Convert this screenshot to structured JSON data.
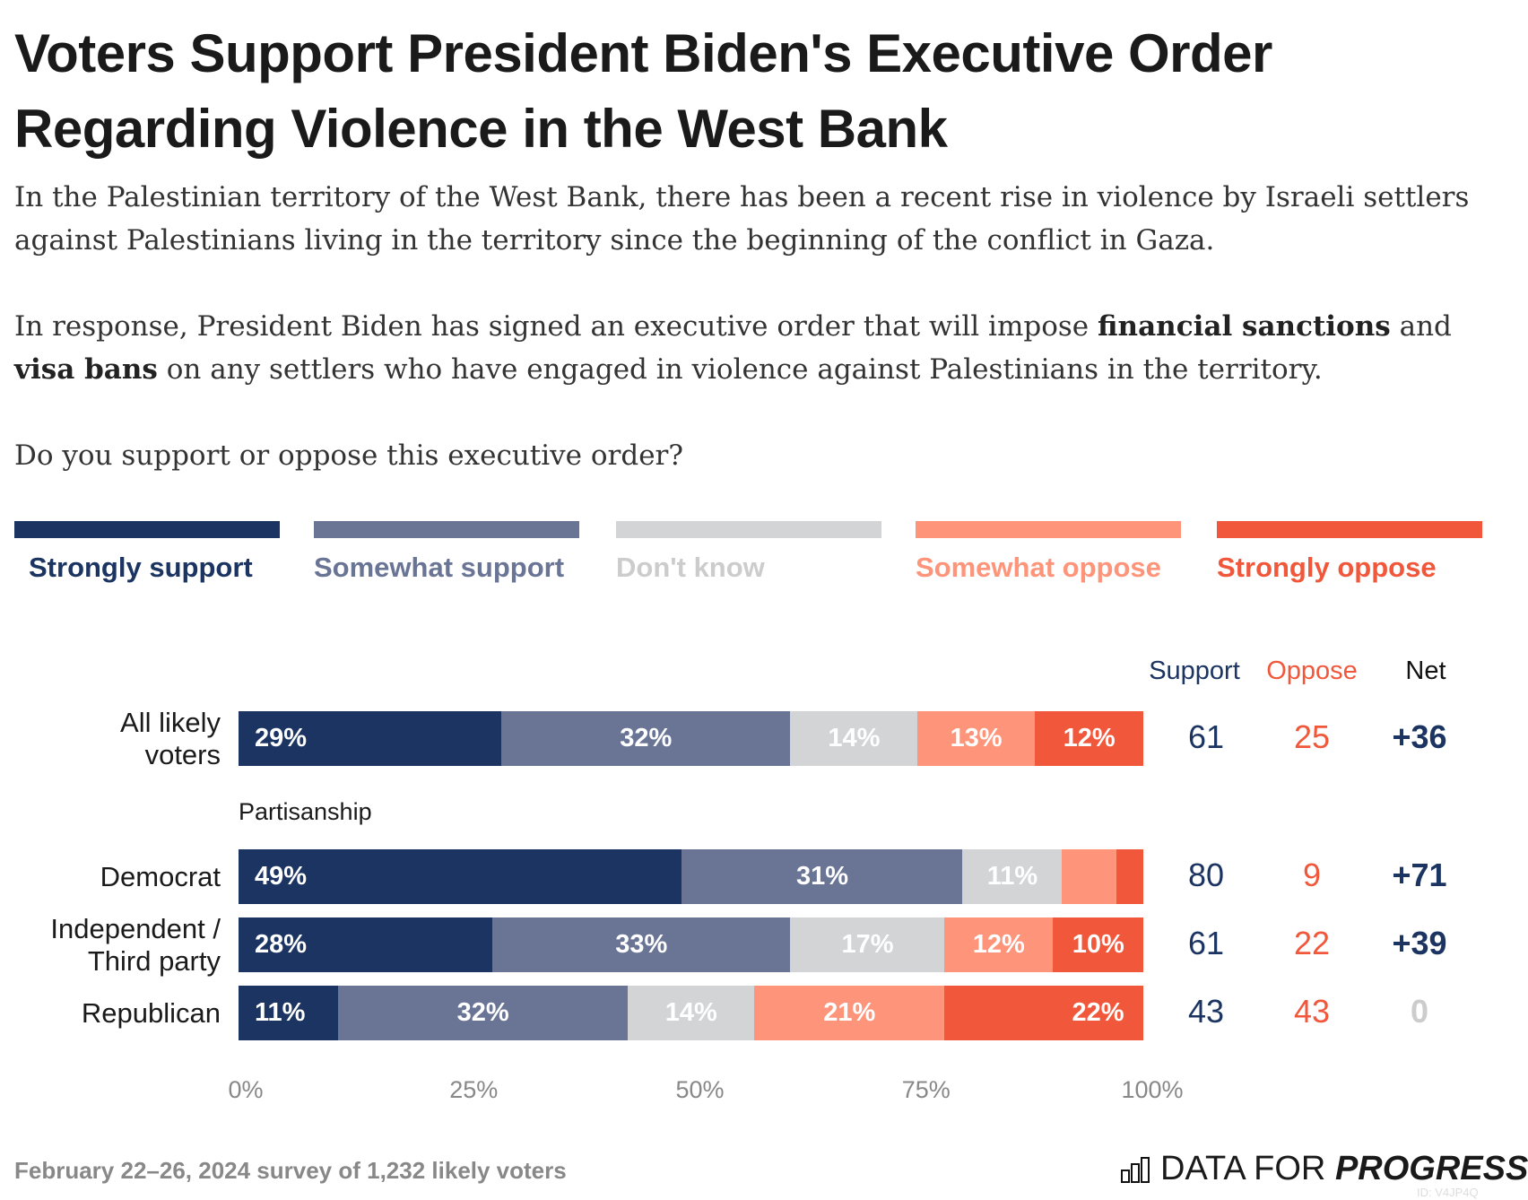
{
  "title": "Voters Support President Biden's Executive Order Regarding Violence in the West Bank",
  "intro": {
    "p1": "In the Palestinian territory of the West Bank, there has been a recent rise in violence by Israeli settlers against Palestinians living in the territory since the beginning of the conflict in Gaza.",
    "p2a": "In response, President Biden has signed an executive order that will impose ",
    "p2b": "financial sanctions",
    "p2c": " and ",
    "p2d": "visa bans",
    "p2e": " on any settlers who have engaged in violence against Palestinians in the territory.",
    "question": "Do you support or oppose this executive order?"
  },
  "colors": {
    "strongly_support": "#1b3461",
    "somewhat_support": "#6a7596",
    "dont_know": "#d3d4d6",
    "somewhat_oppose": "#fe9479",
    "strongly_oppose": "#f1573b"
  },
  "chart_data": {
    "type": "bar",
    "orientation": "horizontal-stacked",
    "legend": [
      "Strongly support",
      "Somewhat support",
      "Don't know",
      "Somewhat oppose",
      "Strongly oppose"
    ],
    "legend_placement": "top",
    "group_label": "Partisanship",
    "categories": [
      "All likely voters",
      "Democrat",
      "Independent / Third party",
      "Republican"
    ],
    "series": [
      {
        "name": "Strongly support",
        "values": [
          29,
          49,
          28,
          11
        ]
      },
      {
        "name": "Somewhat support",
        "values": [
          32,
          31,
          33,
          32
        ]
      },
      {
        "name": "Don't know",
        "values": [
          14,
          11,
          17,
          14
        ]
      },
      {
        "name": "Somewhat oppose",
        "values": [
          13,
          6,
          12,
          21
        ]
      },
      {
        "name": "Strongly oppose",
        "values": [
          12,
          3,
          10,
          22
        ]
      }
    ],
    "shown_labels": [
      [
        "29%",
        "32%",
        "14%",
        "13%",
        "12%"
      ],
      [
        "49%",
        "31%",
        "11%",
        "",
        ""
      ],
      [
        "28%",
        "33%",
        "17%",
        "12%",
        "10%"
      ],
      [
        "11%",
        "32%",
        "14%",
        "21%",
        "22%"
      ]
    ],
    "xlim": [
      0,
      100
    ],
    "xticks": [
      "0%",
      "25%",
      "50%",
      "75%",
      "100%"
    ],
    "summary_headers": [
      "Support",
      "Oppose",
      "Net"
    ],
    "summary": [
      [
        "61",
        "25",
        "+36"
      ],
      [
        "80",
        "9",
        "+71"
      ],
      [
        "61",
        "22",
        "+39"
      ],
      [
        "43",
        "43",
        "0"
      ]
    ]
  },
  "footer": {
    "source": "February 22–26, 2024 survey of 1,232 likely voters",
    "logo_a": "DATA FOR ",
    "logo_b": "PROGRESS",
    "id": "ID: V4JP4Q"
  }
}
